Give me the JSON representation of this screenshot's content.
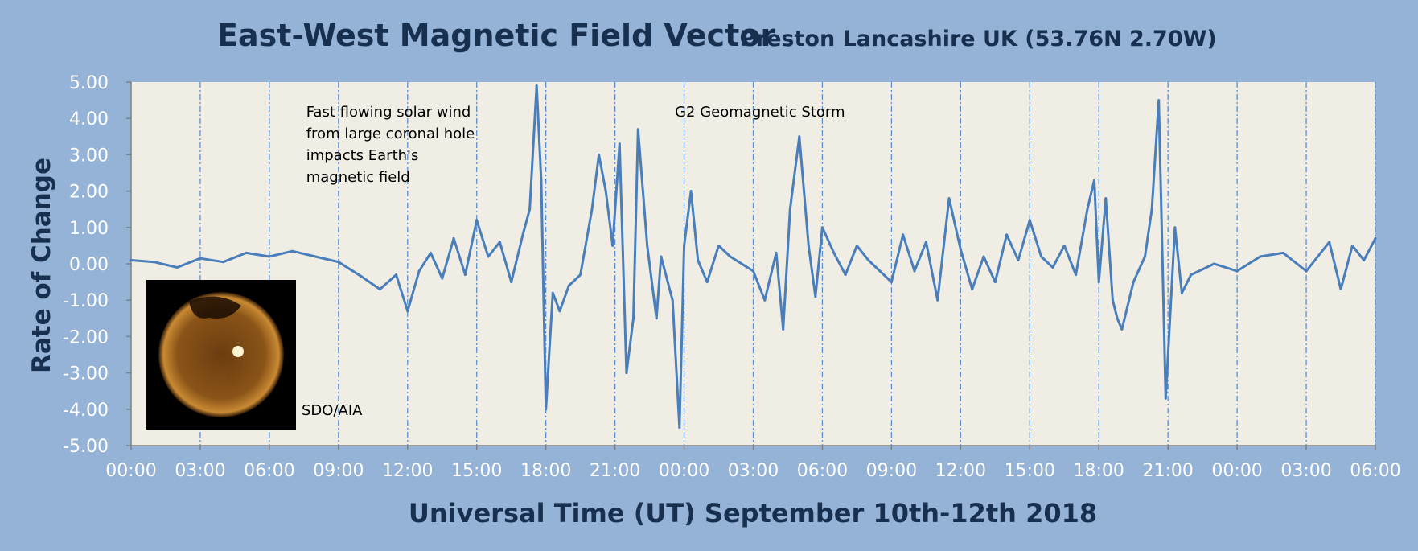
{
  "chart_data": {
    "type": "line",
    "title": "East-West Magnetic Field Vector",
    "subtitle": "Preston Lancashire UK (53.76N 2.70W)",
    "xlabel": "Universal Time (UT) September 10th-12th 2018",
    "ylabel": "Rate of Change",
    "xlim_hours": [
      0,
      54
    ],
    "ylim": [
      -5,
      5
    ],
    "y_ticks": [
      "5.00",
      "4.00",
      "3.00",
      "2.00",
      "1.00",
      "0.00",
      "-1.00",
      "-2.00",
      "-3.00",
      "-4.00",
      "-5.00"
    ],
    "x_ticks": [
      "00:00",
      "03:00",
      "06:00",
      "09:00",
      "12:00",
      "15:00",
      "18:00",
      "21:00",
      "00:00",
      "03:00",
      "06:00",
      "09:00",
      "12:00",
      "15:00",
      "18:00",
      "21:00",
      "00:00",
      "03:00",
      "06:00"
    ],
    "grid": "vertical dashed every 3 hours",
    "line_color": "#4a7ebb",
    "plot_background": "#f0eee4",
    "series": [
      {
        "values": [
          [
            0,
            0.1
          ],
          [
            1,
            0.05
          ],
          [
            2,
            -0.1
          ],
          [
            3,
            0.15
          ],
          [
            4,
            0.05
          ],
          [
            5,
            0.3
          ],
          [
            6,
            0.2
          ],
          [
            7,
            0.35
          ],
          [
            8,
            0.2
          ],
          [
            9,
            0.05
          ],
          [
            10,
            -0.35
          ],
          [
            10.8,
            -0.7
          ],
          [
            11.5,
            -0.3
          ],
          [
            12,
            -1.3
          ],
          [
            12.5,
            -0.2
          ],
          [
            13,
            0.3
          ],
          [
            13.5,
            -0.4
          ],
          [
            14,
            0.7
          ],
          [
            14.5,
            -0.3
          ],
          [
            15,
            1.2
          ],
          [
            15.5,
            0.2
          ],
          [
            16,
            0.6
          ],
          [
            16.5,
            -0.5
          ],
          [
            17,
            0.8
          ],
          [
            17.3,
            1.5
          ],
          [
            17.6,
            4.9
          ],
          [
            17.8,
            2.3
          ],
          [
            18,
            -4.0
          ],
          [
            18.3,
            -0.8
          ],
          [
            18.6,
            -1.3
          ],
          [
            19,
            -0.6
          ],
          [
            19.5,
            -0.3
          ],
          [
            20,
            1.5
          ],
          [
            20.3,
            3.0
          ],
          [
            20.6,
            2.0
          ],
          [
            20.9,
            0.5
          ],
          [
            21.2,
            3.3
          ],
          [
            21.5,
            -3.0
          ],
          [
            21.8,
            -1.5
          ],
          [
            22,
            3.7
          ],
          [
            22.4,
            0.5
          ],
          [
            22.8,
            -1.5
          ],
          [
            23,
            0.2
          ],
          [
            23.5,
            -1.0
          ],
          [
            23.8,
            -4.5
          ],
          [
            24,
            0.5
          ],
          [
            24.3,
            2.0
          ],
          [
            24.6,
            0.1
          ],
          [
            25,
            -0.5
          ],
          [
            25.5,
            0.5
          ],
          [
            26,
            0.2
          ],
          [
            27,
            -0.2
          ],
          [
            27.5,
            -1.0
          ],
          [
            28,
            0.3
          ],
          [
            28.3,
            -1.8
          ],
          [
            28.6,
            1.5
          ],
          [
            29,
            3.5
          ],
          [
            29.4,
            0.5
          ],
          [
            29.7,
            -0.9
          ],
          [
            30,
            1.0
          ],
          [
            30.5,
            0.3
          ],
          [
            31,
            -0.3
          ],
          [
            31.5,
            0.5
          ],
          [
            32,
            0.1
          ],
          [
            33,
            -0.5
          ],
          [
            33.5,
            0.8
          ],
          [
            34,
            -0.2
          ],
          [
            34.5,
            0.6
          ],
          [
            35,
            -1.0
          ],
          [
            35.5,
            1.8
          ],
          [
            36,
            0.4
          ],
          [
            36.5,
            -0.7
          ],
          [
            37,
            0.2
          ],
          [
            37.5,
            -0.5
          ],
          [
            38,
            0.8
          ],
          [
            38.5,
            0.1
          ],
          [
            39,
            1.2
          ],
          [
            39.5,
            0.2
          ],
          [
            40,
            -0.1
          ],
          [
            40.5,
            0.5
          ],
          [
            41,
            -0.3
          ],
          [
            41.5,
            1.5
          ],
          [
            41.8,
            2.3
          ],
          [
            42,
            -0.5
          ],
          [
            42.3,
            1.8
          ],
          [
            42.6,
            -1.0
          ],
          [
            42.8,
            -1.5
          ],
          [
            43,
            -1.8
          ],
          [
            43.5,
            -0.5
          ],
          [
            44,
            0.2
          ],
          [
            44.3,
            1.5
          ],
          [
            44.6,
            4.5
          ],
          [
            44.9,
            -3.7
          ],
          [
            45.3,
            1.0
          ],
          [
            45.6,
            -0.8
          ],
          [
            46,
            -0.3
          ],
          [
            47,
            0.0
          ],
          [
            48,
            -0.2
          ],
          [
            49,
            0.2
          ],
          [
            50,
            0.3
          ],
          [
            51,
            -0.2
          ],
          [
            52,
            0.6
          ],
          [
            52.5,
            -0.7
          ],
          [
            53,
            0.5
          ],
          [
            53.5,
            0.1
          ],
          [
            54,
            0.7
          ]
        ]
      }
    ],
    "annotations": [
      {
        "lines": [
          "Fast flowing solar wind",
          "from large coronal hole",
          "impacts Earth's",
          "magnetic field"
        ],
        "hour": 7.6,
        "y": 4.0
      },
      {
        "lines": [
          "G2 Geomagnetic Storm"
        ],
        "hour": 23.6,
        "y": 4.0
      }
    ],
    "inset_image": {
      "caption": "SDO/AIA",
      "caption_hour": 7.4,
      "caption_y": -4.0
    }
  }
}
